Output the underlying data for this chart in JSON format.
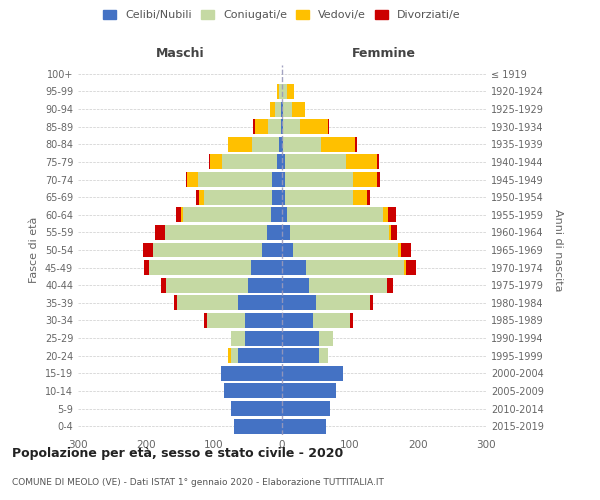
{
  "age_groups": [
    "0-4",
    "5-9",
    "10-14",
    "15-19",
    "20-24",
    "25-29",
    "30-34",
    "35-39",
    "40-44",
    "45-49",
    "50-54",
    "55-59",
    "60-64",
    "65-69",
    "70-74",
    "75-79",
    "80-84",
    "85-89",
    "90-94",
    "95-99",
    "100+"
  ],
  "birth_years": [
    "2015-2019",
    "2010-2014",
    "2005-2009",
    "2000-2004",
    "1995-1999",
    "1990-1994",
    "1985-1989",
    "1980-1984",
    "1975-1979",
    "1970-1974",
    "1965-1969",
    "1960-1964",
    "1955-1959",
    "1950-1954",
    "1945-1949",
    "1940-1944",
    "1935-1939",
    "1930-1934",
    "1925-1929",
    "1920-1924",
    "≤ 1919"
  ],
  "maschi": {
    "celibi": [
      70,
      75,
      85,
      90,
      65,
      55,
      55,
      65,
      50,
      45,
      30,
      22,
      16,
      14,
      14,
      8,
      4,
      2,
      2,
      0,
      0
    ],
    "coniugati": [
      0,
      0,
      0,
      0,
      10,
      20,
      55,
      90,
      120,
      150,
      160,
      150,
      130,
      100,
      110,
      80,
      40,
      18,
      8,
      4,
      0
    ],
    "vedovi": [
      0,
      0,
      0,
      0,
      5,
      0,
      0,
      0,
      0,
      0,
      0,
      0,
      2,
      8,
      15,
      18,
      35,
      20,
      8,
      4,
      0
    ],
    "divorziati": [
      0,
      0,
      0,
      0,
      0,
      0,
      4,
      4,
      8,
      8,
      15,
      15,
      8,
      4,
      2,
      2,
      0,
      2,
      0,
      0,
      0
    ]
  },
  "femmine": {
    "nubili": [
      65,
      70,
      80,
      90,
      55,
      55,
      45,
      50,
      40,
      35,
      16,
      12,
      8,
      5,
      5,
      4,
      2,
      2,
      2,
      0,
      0
    ],
    "coniugate": [
      0,
      0,
      0,
      0,
      12,
      20,
      55,
      80,
      115,
      145,
      155,
      145,
      140,
      100,
      100,
      90,
      55,
      25,
      12,
      8,
      0
    ],
    "vedove": [
      0,
      0,
      0,
      0,
      0,
      0,
      0,
      0,
      0,
      2,
      4,
      4,
      8,
      20,
      35,
      45,
      50,
      40,
      20,
      10,
      0
    ],
    "divorziate": [
      0,
      0,
      0,
      0,
      0,
      0,
      4,
      4,
      8,
      15,
      15,
      8,
      12,
      4,
      4,
      4,
      4,
      2,
      0,
      0,
      0
    ]
  },
  "colors": {
    "celibi": "#4472c4",
    "coniugati": "#c5d9a3",
    "vedovi": "#ffc000",
    "divorziati": "#cc0000"
  },
  "xlim": 300,
  "title": "Popolazione per età, sesso e stato civile - 2020",
  "subtitle": "COMUNE DI MEOLO (VE) - Dati ISTAT 1° gennaio 2020 - Elaborazione TUTTITALIA.IT",
  "ylabel_left": "Fasce di età",
  "ylabel_right": "Anni di nascita",
  "xlabel_left": "Maschi",
  "xlabel_right": "Femmine",
  "background_color": "#ffffff",
  "grid_color": "#cccccc"
}
